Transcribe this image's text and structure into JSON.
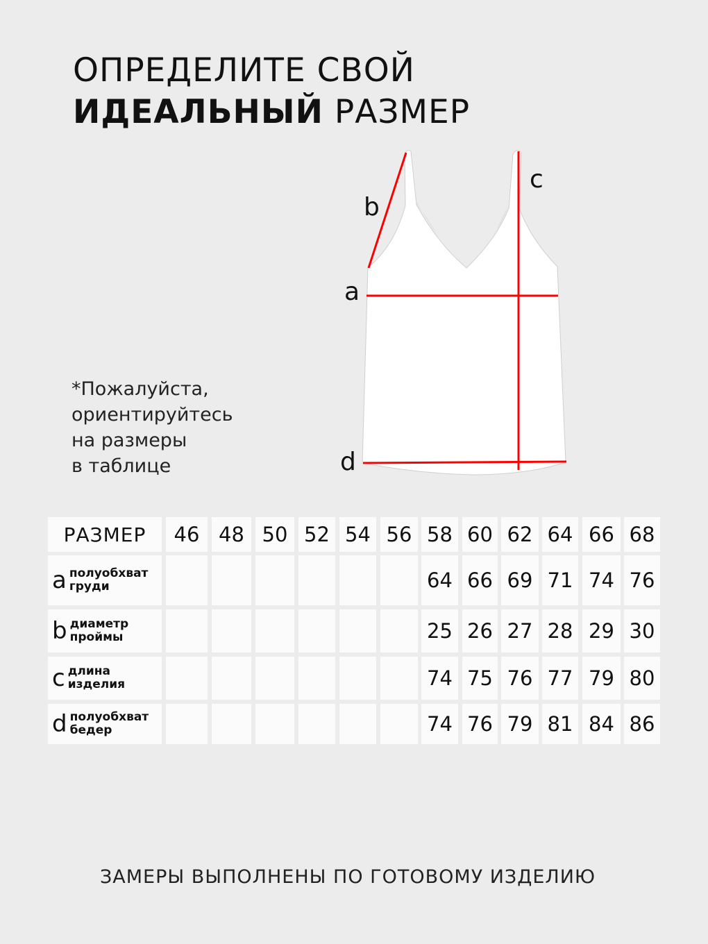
{
  "heading": {
    "line1": "ОПРЕДЕЛИТЕ СВОЙ",
    "line2_bold": "ИДЕАЛЬНЫЙ",
    "line2_rest": " РАЗМЕР"
  },
  "note": [
    "*Пожалуйста,",
    "ориентируйтесь",
    "на размеры",
    "в таблице"
  ],
  "diagram": {
    "labels": {
      "a": "a",
      "b": "b",
      "c": "c",
      "d": "d"
    },
    "line_color": "#ff0000",
    "garment": "camisole-top"
  },
  "table": {
    "header": "РАЗМЕР",
    "sizes": [
      "46",
      "48",
      "50",
      "52",
      "54",
      "56",
      "58",
      "60",
      "62",
      "64",
      "66",
      "68"
    ],
    "rows": [
      {
        "letter": "a",
        "desc": [
          "полуобхват",
          "груди"
        ],
        "values": [
          "",
          "",
          "",
          "",
          "",
          "",
          "64",
          "66",
          "69",
          "71",
          "74",
          "76"
        ]
      },
      {
        "letter": "b",
        "desc": [
          "диаметр",
          "проймы"
        ],
        "values": [
          "",
          "",
          "",
          "",
          "",
          "",
          "25",
          "26",
          "27",
          "28",
          "29",
          "30"
        ]
      },
      {
        "letter": "c",
        "desc": [
          "длина",
          "изделия"
        ],
        "values": [
          "",
          "",
          "",
          "",
          "",
          "",
          "74",
          "75",
          "76",
          "77",
          "79",
          "80"
        ]
      },
      {
        "letter": "d",
        "desc": [
          "полуобхват",
          "бедер"
        ],
        "values": [
          "",
          "",
          "",
          "",
          "",
          "",
          "74",
          "76",
          "79",
          "81",
          "84",
          "86"
        ]
      }
    ]
  },
  "footer": "ЗАМЕРЫ ВЫПОЛНЕНЫ ПО ГОТОВОМУ ИЗДЕЛИЮ"
}
